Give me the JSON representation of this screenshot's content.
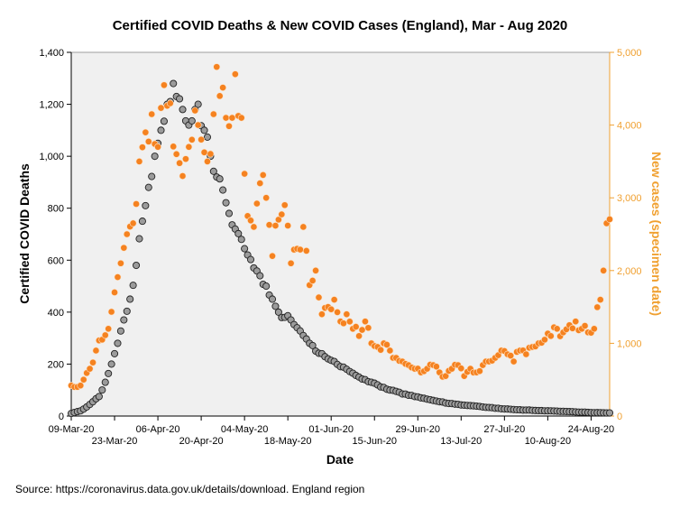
{
  "chart_data": {
    "type": "scatter",
    "title": "Certified COVID Deaths & New COVID Cases (England), Mar - Aug 2020",
    "xlabel": "Date",
    "ylabel_left": "Certified COVID Deaths",
    "ylabel_right": "New cases (specimen date)",
    "source_note": "Source: https://coronavirus.data.gov.uk/details/download. England region",
    "x_start_label": "09-Mar-20",
    "x_days": 174,
    "x_ticks_top": [
      {
        "day": 0,
        "label": "09-Mar-20"
      },
      {
        "day": 28,
        "label": "06-Apr-20"
      },
      {
        "day": 56,
        "label": "04-May-20"
      },
      {
        "day": 84,
        "label": "01-Jun-20"
      },
      {
        "day": 112,
        "label": "29-Jun-20"
      },
      {
        "day": 140,
        "label": "27-Jul-20"
      },
      {
        "day": 168,
        "label": "24-Aug-20"
      }
    ],
    "x_ticks_bottom": [
      {
        "day": 14,
        "label": "23-Mar-20"
      },
      {
        "day": 42,
        "label": "20-Apr-20"
      },
      {
        "day": 70,
        "label": "18-May-20"
      },
      {
        "day": 98,
        "label": "15-Jun-20"
      },
      {
        "day": 126,
        "label": "13-Jul-20"
      },
      {
        "day": 154,
        "label": "10-Aug-20"
      }
    ],
    "y_left": {
      "min": 0,
      "max": 1400,
      "ticks": [
        "0",
        "200",
        "400",
        "600",
        "800",
        "1,000",
        "1,200",
        "1,400"
      ]
    },
    "y_right": {
      "min": 0,
      "max": 5000,
      "ticks": [
        "0",
        "1,000",
        "2,000",
        "3,000",
        "4,000",
        "5,000"
      ]
    },
    "series": [
      {
        "name": "Certified COVID Deaths",
        "axis": "left",
        "color": "#9b9b9b",
        "anchors": [
          [
            0,
            10
          ],
          [
            3,
            20
          ],
          [
            5,
            35
          ],
          [
            7,
            55
          ],
          [
            9,
            75
          ],
          [
            11,
            130
          ],
          [
            13,
            200
          ],
          [
            15,
            280
          ],
          [
            17,
            370
          ],
          [
            19,
            450
          ],
          [
            21,
            580
          ],
          [
            23,
            750
          ],
          [
            25,
            880
          ],
          [
            27,
            1000
          ],
          [
            29,
            1100
          ],
          [
            31,
            1200
          ],
          [
            33,
            1280
          ],
          [
            34,
            1230
          ],
          [
            36,
            1180
          ],
          [
            38,
            1120
          ],
          [
            40,
            1180
          ],
          [
            41,
            1200
          ],
          [
            43,
            1100
          ],
          [
            45,
            1000
          ],
          [
            47,
            920
          ],
          [
            49,
            870
          ],
          [
            51,
            780
          ],
          [
            53,
            720
          ],
          [
            55,
            680
          ],
          [
            57,
            620
          ],
          [
            59,
            570
          ],
          [
            61,
            540
          ],
          [
            63,
            500
          ],
          [
            65,
            450
          ],
          [
            67,
            400
          ],
          [
            69,
            380
          ],
          [
            71,
            370
          ],
          [
            73,
            340
          ],
          [
            75,
            310
          ],
          [
            77,
            280
          ],
          [
            79,
            250
          ],
          [
            81,
            240
          ],
          [
            83,
            220
          ],
          [
            85,
            210
          ],
          [
            87,
            190
          ],
          [
            89,
            180
          ],
          [
            91,
            165
          ],
          [
            93,
            150
          ],
          [
            95,
            140
          ],
          [
            97,
            130
          ],
          [
            99,
            120
          ],
          [
            101,
            110
          ],
          [
            103,
            100
          ],
          [
            105,
            95
          ],
          [
            107,
            85
          ],
          [
            109,
            80
          ],
          [
            111,
            75
          ],
          [
            113,
            70
          ],
          [
            115,
            65
          ],
          [
            117,
            60
          ],
          [
            119,
            55
          ],
          [
            121,
            50
          ],
          [
            123,
            48
          ],
          [
            125,
            45
          ],
          [
            127,
            42
          ],
          [
            129,
            40
          ],
          [
            131,
            38
          ],
          [
            133,
            35
          ],
          [
            135,
            33
          ],
          [
            137,
            30
          ],
          [
            139,
            28
          ],
          [
            141,
            27
          ],
          [
            143,
            25
          ],
          [
            145,
            24
          ],
          [
            147,
            23
          ],
          [
            149,
            22
          ],
          [
            151,
            21
          ],
          [
            153,
            20
          ],
          [
            155,
            20
          ],
          [
            157,
            19
          ],
          [
            159,
            18
          ],
          [
            161,
            17
          ],
          [
            163,
            16
          ],
          [
            165,
            15
          ],
          [
            167,
            14
          ],
          [
            169,
            13
          ],
          [
            171,
            13
          ],
          [
            173,
            12
          ]
        ]
      },
      {
        "name": "New cases (specimen date)",
        "axis": "right",
        "color": "#f58220",
        "anchors": [
          [
            0,
            420
          ],
          [
            2,
            400
          ],
          [
            4,
            500
          ],
          [
            6,
            650
          ],
          [
            8,
            900
          ],
          [
            10,
            1050
          ],
          [
            12,
            1200
          ],
          [
            14,
            1700
          ],
          [
            16,
            2100
          ],
          [
            18,
            2500
          ],
          [
            20,
            2650
          ],
          [
            22,
            3500
          ],
          [
            24,
            3900
          ],
          [
            26,
            4150
          ],
          [
            28,
            3700
          ],
          [
            30,
            4550
          ],
          [
            32,
            4300
          ],
          [
            34,
            3600
          ],
          [
            36,
            3300
          ],
          [
            38,
            3700
          ],
          [
            40,
            4200
          ],
          [
            42,
            3800
          ],
          [
            44,
            3500
          ],
          [
            46,
            4150
          ],
          [
            47,
            4800
          ],
          [
            48,
            4400
          ],
          [
            50,
            4100
          ],
          [
            52,
            4100
          ],
          [
            53,
            4700
          ],
          [
            55,
            4100
          ],
          [
            57,
            2750
          ],
          [
            59,
            2600
          ],
          [
            61,
            3200
          ],
          [
            63,
            3000
          ],
          [
            65,
            2200
          ],
          [
            67,
            2700
          ],
          [
            69,
            2900
          ],
          [
            71,
            2100
          ],
          [
            73,
            2300
          ],
          [
            75,
            2600
          ],
          [
            77,
            1800
          ],
          [
            79,
            2000
          ],
          [
            81,
            1400
          ],
          [
            83,
            1500
          ],
          [
            85,
            1600
          ],
          [
            87,
            1300
          ],
          [
            89,
            1400
          ],
          [
            91,
            1200
          ],
          [
            93,
            1100
          ],
          [
            95,
            1300
          ],
          [
            97,
            1000
          ],
          [
            99,
            950
          ],
          [
            101,
            1000
          ],
          [
            103,
            900
          ],
          [
            105,
            800
          ],
          [
            107,
            750
          ],
          [
            109,
            700
          ],
          [
            111,
            650
          ],
          [
            113,
            600
          ],
          [
            115,
            650
          ],
          [
            117,
            700
          ],
          [
            119,
            600
          ],
          [
            121,
            550
          ],
          [
            123,
            650
          ],
          [
            125,
            700
          ],
          [
            127,
            550
          ],
          [
            129,
            650
          ],
          [
            131,
            600
          ],
          [
            133,
            700
          ],
          [
            135,
            750
          ],
          [
            137,
            800
          ],
          [
            139,
            900
          ],
          [
            141,
            850
          ],
          [
            143,
            750
          ],
          [
            145,
            900
          ],
          [
            147,
            850
          ],
          [
            149,
            950
          ],
          [
            151,
            1000
          ],
          [
            153,
            1050
          ],
          [
            155,
            1100
          ],
          [
            157,
            1200
          ],
          [
            159,
            1150
          ],
          [
            161,
            1250
          ],
          [
            163,
            1300
          ],
          [
            165,
            1200
          ],
          [
            167,
            1150
          ],
          [
            169,
            1200
          ],
          [
            171,
            1600
          ],
          [
            172,
            2000
          ],
          [
            173,
            2650
          ]
        ]
      }
    ]
  },
  "colors": {
    "plot_bg": "#f0f0f0",
    "right_axis": "#f0a030",
    "deaths_fill": "#9b9b9b",
    "cases_fill": "#f58220"
  }
}
